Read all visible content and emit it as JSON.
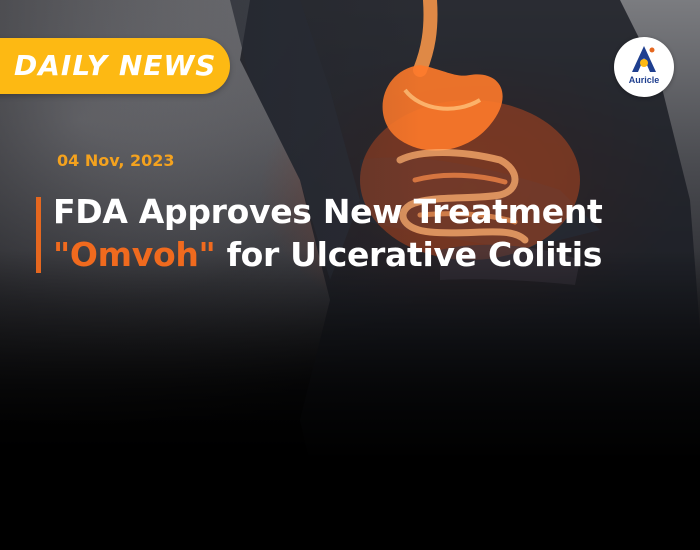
{
  "badge": {
    "label": "DAILY NEWS"
  },
  "logo": {
    "name": "Auricle"
  },
  "article": {
    "date": "04 Nov, 2023",
    "headline_line1": "FDA Approves New Treatment",
    "headline_highlight": "\"Omvoh\"",
    "headline_line2_rest": " for Ulcerative Colitis"
  },
  "colors": {
    "badge": "#fdb913",
    "date": "#f4a21e",
    "accent": "#e5671f",
    "highlight": "#f06a1e",
    "logo_blue": "#1f3f8f"
  }
}
